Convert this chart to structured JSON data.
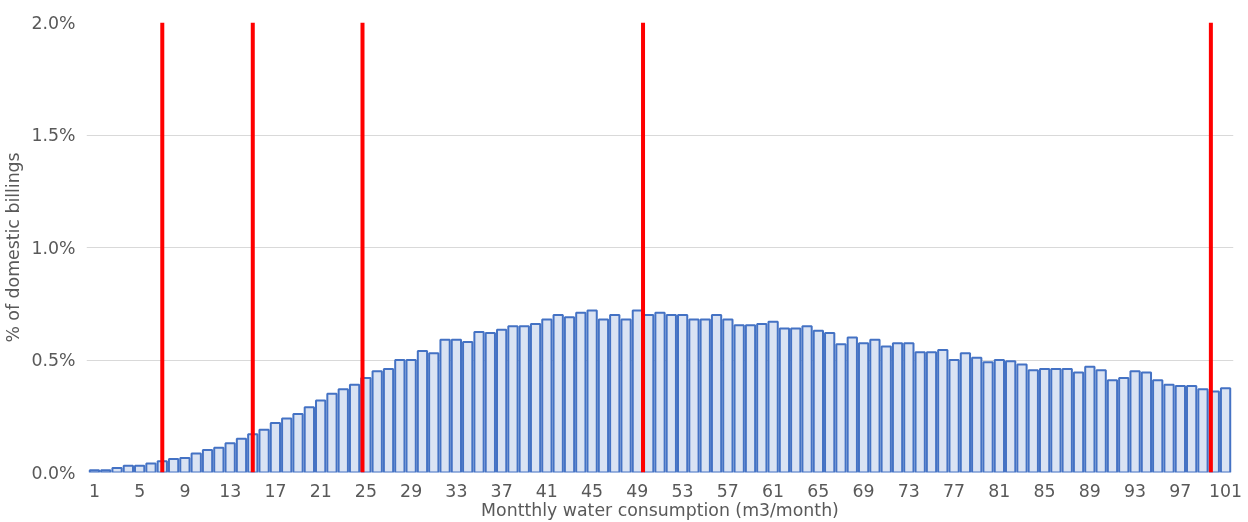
{
  "chart_data": {
    "type": "bar",
    "xlabel": "Montthly water consumption (m3/month)",
    "ylabel": "% of domestic billings",
    "x": [
      1,
      2,
      3,
      4,
      5,
      6,
      7,
      8,
      9,
      10,
      11,
      12,
      13,
      14,
      15,
      16,
      17,
      18,
      19,
      20,
      21,
      22,
      23,
      24,
      25,
      26,
      27,
      28,
      29,
      30,
      31,
      32,
      33,
      34,
      35,
      36,
      37,
      38,
      39,
      40,
      41,
      42,
      43,
      44,
      45,
      46,
      47,
      48,
      49,
      50,
      51,
      52,
      53,
      54,
      55,
      56,
      57,
      58,
      59,
      60,
      61,
      62,
      63,
      64,
      65,
      66,
      67,
      68,
      69,
      70,
      71,
      72,
      73,
      74,
      75,
      76,
      77,
      78,
      79,
      80,
      81,
      82,
      83,
      84,
      85,
      86,
      87,
      88,
      89,
      90,
      91,
      92,
      93,
      94,
      95,
      96,
      97,
      98,
      99,
      100,
      101
    ],
    "values": [
      0.01,
      0.01,
      0.02,
      0.03,
      0.03,
      0.04,
      0.05,
      0.06,
      0.065,
      0.085,
      0.1,
      0.11,
      0.13,
      0.15,
      0.17,
      0.19,
      0.22,
      0.24,
      0.26,
      0.29,
      0.32,
      0.35,
      0.37,
      0.39,
      0.42,
      0.45,
      0.46,
      0.5,
      0.5,
      0.54,
      0.53,
      0.59,
      0.59,
      0.58,
      0.625,
      0.62,
      0.635,
      0.65,
      0.65,
      0.66,
      0.68,
      0.7,
      0.69,
      0.71,
      0.72,
      0.68,
      0.7,
      0.68,
      0.72,
      0.7,
      0.71,
      0.7,
      0.7,
      0.68,
      0.68,
      0.7,
      0.68,
      0.655,
      0.655,
      0.66,
      0.67,
      0.64,
      0.64,
      0.65,
      0.63,
      0.62,
      0.57,
      0.6,
      0.575,
      0.59,
      0.56,
      0.575,
      0.575,
      0.535,
      0.535,
      0.545,
      0.5,
      0.53,
      0.51,
      0.49,
      0.5,
      0.495,
      0.48,
      0.455,
      0.46,
      0.46,
      0.46,
      0.445,
      0.47,
      0.455,
      0.41,
      0.42,
      0.45,
      0.445,
      0.41,
      0.39,
      0.385,
      0.385,
      0.37,
      0.36,
      0.375
    ],
    "color": "#4472c4",
    "xlim": [
      0.3,
      101.7
    ],
    "xticks": [
      1,
      5,
      9,
      13,
      17,
      21,
      25,
      29,
      33,
      37,
      41,
      45,
      49,
      53,
      57,
      61,
      65,
      69,
      73,
      77,
      81,
      85,
      89,
      93,
      97,
      101
    ],
    "ylim": [
      0,
      2.0
    ],
    "yticks": [
      {
        "value": 0,
        "label": "0.0%"
      },
      {
        "value": 0.5,
        "label": "0.5%"
      },
      {
        "value": 1.0,
        "label": "1.0%"
      },
      {
        "value": 1.5,
        "label": "1.5%"
      },
      {
        "value": 2.0,
        "label": "2.0%"
      }
    ],
    "grid": "y",
    "ref_lines": [
      {
        "axis": "x",
        "value": 7,
        "color": "#ff0000"
      },
      {
        "axis": "x",
        "value": 15,
        "color": "#ff0000"
      },
      {
        "axis": "x",
        "value": 24.7,
        "color": "#ff0000"
      },
      {
        "axis": "x",
        "value": 49.5,
        "color": "#ff0000"
      },
      {
        "axis": "x",
        "value": 99.7,
        "color": "#ff0000"
      }
    ]
  }
}
